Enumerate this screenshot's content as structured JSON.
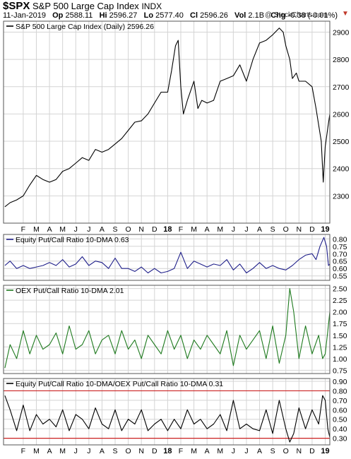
{
  "header": {
    "symbol": "$SPX",
    "name": "S&P 500 Large Cap Index",
    "exchange": "INDX",
    "date": "11-Jan-2019",
    "op_label": "Op",
    "op_value": "2588.11",
    "hi_label": "Hi",
    "hi_value": "2596.27",
    "lo_label": "Lo",
    "lo_value": "2577.40",
    "cl_label": "Cl",
    "cl_value": "2596.26",
    "vol_label": "Vol",
    "vol_value": "2.1B",
    "chg_label": "Chg",
    "chg_value": "-0.38 (-0.01%)",
    "chg_arrow": "▼",
    "watermark": "@ StockCharts.com"
  },
  "x_axis": {
    "months": [
      {
        "label": "F",
        "t": 1
      },
      {
        "label": "M",
        "t": 2
      },
      {
        "label": "A",
        "t": 3
      },
      {
        "label": "M",
        "t": 4
      },
      {
        "label": "J",
        "t": 5
      },
      {
        "label": "J",
        "t": 6
      },
      {
        "label": "A",
        "t": 7
      },
      {
        "label": "S",
        "t": 8
      },
      {
        "label": "O",
        "t": 9
      },
      {
        "label": "N",
        "t": 10
      },
      {
        "label": "D",
        "t": 11
      },
      {
        "label": "18",
        "t": 12,
        "year": true
      },
      {
        "label": "F",
        "t": 13
      },
      {
        "label": "M",
        "t": 14
      },
      {
        "label": "A",
        "t": 15
      },
      {
        "label": "M",
        "t": 16
      },
      {
        "label": "J",
        "t": 17
      },
      {
        "label": "J",
        "t": 18
      },
      {
        "label": "A",
        "t": 19
      },
      {
        "label": "S",
        "t": 20
      },
      {
        "label": "O",
        "t": 21
      },
      {
        "label": "N",
        "t": 22
      },
      {
        "label": "D",
        "t": 23
      },
      {
        "label": "19",
        "t": 24,
        "year": true
      }
    ],
    "t_range": [
      -0.5,
      24.35
    ]
  },
  "chart_data": [
    {
      "type": "line",
      "title": "S&P 500 Large Cap Index (Daily) 2596.26",
      "color": "#000000",
      "ylim": [
        2200,
        2940
      ],
      "yticks": [
        2300,
        2400,
        2500,
        2600,
        2700,
        2800,
        2900
      ],
      "series": [
        {
          "name": "S&P 500 Large Cap Index (Daily)",
          "x": [
            -0.4,
            0,
            0.5,
            1,
            1.5,
            2,
            2.5,
            3,
            3.5,
            4,
            4.5,
            5,
            5.5,
            6,
            6.5,
            7,
            7.5,
            8,
            8.5,
            9,
            9.5,
            10,
            10.5,
            11,
            11.5,
            12,
            12.3,
            12.6,
            12.8,
            13,
            13.2,
            13.5,
            14,
            14.3,
            14.6,
            15,
            15.5,
            16,
            16.5,
            17,
            17.5,
            18,
            18.5,
            19,
            19.5,
            20,
            20.5,
            20.8,
            21,
            21.3,
            21.5,
            21.8,
            22,
            22.5,
            23,
            23.3,
            23.5,
            23.7,
            23.85,
            24,
            24.2,
            24.35
          ],
          "values": [
            2260,
            2275,
            2285,
            2300,
            2340,
            2375,
            2360,
            2350,
            2360,
            2390,
            2400,
            2420,
            2440,
            2430,
            2470,
            2460,
            2470,
            2490,
            2510,
            2540,
            2570,
            2575,
            2600,
            2640,
            2680,
            2680,
            2760,
            2850,
            2870,
            2700,
            2600,
            2650,
            2720,
            2620,
            2650,
            2640,
            2650,
            2720,
            2730,
            2740,
            2780,
            2720,
            2800,
            2860,
            2870,
            2890,
            2915,
            2900,
            2850,
            2800,
            2730,
            2750,
            2720,
            2720,
            2700,
            2620,
            2560,
            2500,
            2350,
            2480,
            2550,
            2600
          ]
        }
      ]
    },
    {
      "type": "line",
      "title": "Equity Put/Call Ratio 10-DMA 0.63",
      "color": "#1f1f8a",
      "ylim": [
        0.52,
        0.83
      ],
      "yticks": [
        0.55,
        0.6,
        0.65,
        0.7,
        0.75,
        0.8
      ],
      "series": [
        {
          "name": "Equity Put/Call Ratio 10-DMA",
          "x": [
            -0.4,
            0,
            0.5,
            1,
            1.5,
            2,
            2.5,
            3,
            3.5,
            4,
            4.5,
            5,
            5.5,
            6,
            6.5,
            7,
            7.5,
            8,
            8.5,
            9,
            9.5,
            10,
            10.5,
            11,
            11.5,
            12,
            12.5,
            13,
            13.5,
            14,
            14.5,
            15,
            15.5,
            16,
            16.5,
            17,
            17.5,
            18,
            18.5,
            19,
            19.5,
            20,
            20.5,
            21,
            21.5,
            22,
            22.5,
            23,
            23.3,
            23.6,
            23.9,
            24.1,
            24.25,
            24.35
          ],
          "values": [
            0.62,
            0.65,
            0.6,
            0.62,
            0.6,
            0.61,
            0.62,
            0.64,
            0.62,
            0.66,
            0.61,
            0.63,
            0.68,
            0.62,
            0.65,
            0.64,
            0.6,
            0.67,
            0.6,
            0.6,
            0.58,
            0.61,
            0.57,
            0.6,
            0.57,
            0.58,
            0.6,
            0.71,
            0.6,
            0.65,
            0.63,
            0.61,
            0.63,
            0.62,
            0.66,
            0.59,
            0.63,
            0.57,
            0.6,
            0.64,
            0.6,
            0.62,
            0.6,
            0.59,
            0.62,
            0.66,
            0.69,
            0.7,
            0.66,
            0.75,
            0.81,
            0.75,
            0.62,
            0.63
          ]
        }
      ]
    },
    {
      "type": "line",
      "title": "OEX Put/Call Ratio 10-DMA 2.01",
      "color": "#1e7a1e",
      "ylim": [
        0.68,
        2.57
      ],
      "yticks": [
        0.75,
        1.0,
        1.25,
        1.5,
        1.75,
        2.0,
        2.25,
        2.5
      ],
      "series": [
        {
          "name": "OEX Put/Call Ratio 10-DMA",
          "x": [
            -0.4,
            0,
            0.5,
            1,
            1.5,
            2,
            2.5,
            3,
            3.5,
            4,
            4.5,
            5,
            5.5,
            6,
            6.5,
            7,
            7.5,
            8,
            8.5,
            9,
            9.5,
            10,
            10.5,
            11,
            11.5,
            12,
            12.5,
            13,
            13.5,
            14,
            14.5,
            15,
            15.5,
            16,
            16.5,
            17,
            17.5,
            18,
            18.5,
            19,
            19.5,
            20,
            20.5,
            21,
            21.3,
            21.6,
            22,
            22.5,
            23,
            23.5,
            23.8,
            24,
            24.2,
            24.35
          ],
          "values": [
            0.8,
            1.3,
            1.0,
            1.6,
            1.1,
            1.5,
            1.2,
            1.3,
            1.55,
            1.1,
            1.7,
            1.2,
            1.3,
            1.6,
            1.1,
            1.4,
            1.5,
            1.1,
            1.6,
            1.2,
            1.4,
            1.0,
            1.5,
            1.3,
            1.1,
            1.6,
            1.2,
            1.5,
            1.0,
            1.4,
            1.2,
            1.5,
            1.3,
            1.1,
            1.6,
            0.85,
            1.5,
            1.2,
            1.4,
            1.6,
            1.0,
            1.7,
            0.9,
            1.5,
            2.5,
            2.0,
            1.0,
            1.7,
            1.1,
            1.5,
            1.0,
            1.1,
            1.6,
            2.0
          ]
        }
      ]
    },
    {
      "type": "line",
      "title": "Equity Put/Call Ratio 10-DMA/OEX Put/Call Ratio 10-DMA 0.31",
      "color": "#000000",
      "ylim": [
        0.23,
        0.93
      ],
      "yticks": [
        0.3,
        0.4,
        0.5,
        0.6,
        0.7,
        0.8,
        0.9
      ],
      "hlines": [
        {
          "value": 0.8,
          "color": "#cc2222"
        },
        {
          "value": 0.3,
          "color": "#cc2222"
        }
      ],
      "series": [
        {
          "name": "Equity Put/Call Ratio 10-DMA/OEX Put/Call Ratio 10-DMA",
          "x": [
            -0.4,
            0,
            0.5,
            1,
            1.5,
            2,
            2.5,
            3,
            3.5,
            4,
            4.5,
            5,
            5.5,
            6,
            6.5,
            7,
            7.5,
            8,
            8.5,
            9,
            9.5,
            10,
            10.5,
            11,
            11.5,
            12,
            12.5,
            13,
            13.5,
            14,
            14.5,
            15,
            15.5,
            16,
            16.5,
            17,
            17.5,
            18,
            18.5,
            19,
            19.5,
            20,
            20.5,
            21,
            21.3,
            21.6,
            22,
            22.5,
            23,
            23.5,
            23.8,
            24,
            24.2,
            24.35
          ],
          "values": [
            0.75,
            0.6,
            0.38,
            0.65,
            0.38,
            0.55,
            0.45,
            0.5,
            0.42,
            0.6,
            0.38,
            0.55,
            0.5,
            0.4,
            0.62,
            0.45,
            0.4,
            0.6,
            0.38,
            0.5,
            0.45,
            0.6,
            0.38,
            0.45,
            0.5,
            0.38,
            0.5,
            0.4,
            0.6,
            0.45,
            0.5,
            0.4,
            0.45,
            0.55,
            0.38,
            0.7,
            0.4,
            0.45,
            0.4,
            0.38,
            0.6,
            0.35,
            0.7,
            0.4,
            0.26,
            0.35,
            0.62,
            0.4,
            0.6,
            0.45,
            0.75,
            0.7,
            0.4,
            0.31
          ]
        }
      ]
    }
  ]
}
